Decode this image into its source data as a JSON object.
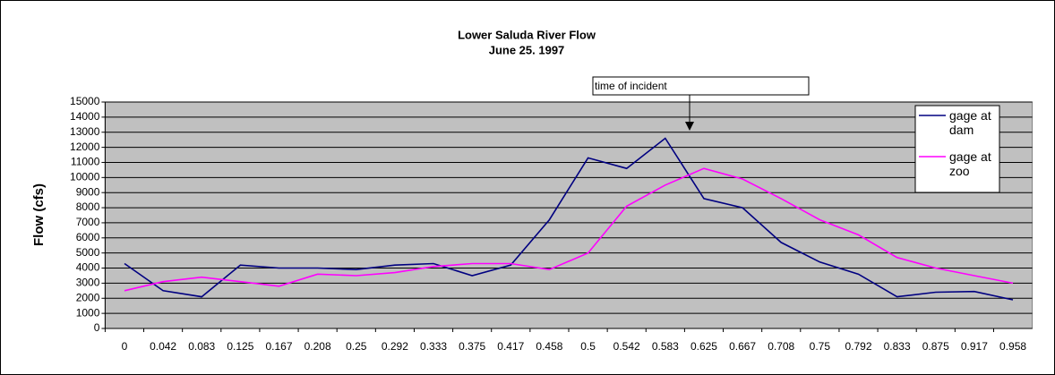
{
  "chart_data": {
    "type": "line",
    "title": "Lower Saluda River Flow",
    "subtitle": "June 25. 1997",
    "y_label": "Flow (cfs)",
    "annotation": "time of incident",
    "categories": [
      "0",
      "0.042",
      "0.083",
      "0.125",
      "0.167",
      "0.208",
      "0.25",
      "0.292",
      "0.333",
      "0.375",
      "0.417",
      "0.458",
      "0.5",
      "0.542",
      "0.583",
      "0.625",
      "0.667",
      "0.708",
      "0.75",
      "0.792",
      "0.833",
      "0.875",
      "0.917",
      "0.958"
    ],
    "series": [
      {
        "name": "gage at dam",
        "color": "#000080",
        "values": [
          4300,
          2500,
          2100,
          4200,
          4000,
          4000,
          3900,
          4200,
          4300,
          3500,
          4200,
          7200,
          11300,
          10600,
          12600,
          8600,
          8000,
          5700,
          4400,
          3600,
          2100,
          2400,
          2450,
          1900
        ]
      },
      {
        "name": "gage at zoo",
        "color": "#ff00ff",
        "values": [
          2500,
          3100,
          3400,
          3100,
          2800,
          3600,
          3500,
          3700,
          4100,
          4300,
          4300,
          3900,
          5000,
          8100,
          9500,
          10600,
          9900,
          8600,
          7200,
          6200,
          4700,
          4000,
          3500,
          3000
        ]
      }
    ],
    "ylim": [
      0,
      15000
    ],
    "yticks": [
      0,
      1000,
      2000,
      3000,
      4000,
      5000,
      6000,
      7000,
      8000,
      9000,
      10000,
      11000,
      12000,
      13000,
      14000,
      15000
    ],
    "grid": true,
    "legend": "right",
    "plot_background": "#c0c0c0"
  }
}
